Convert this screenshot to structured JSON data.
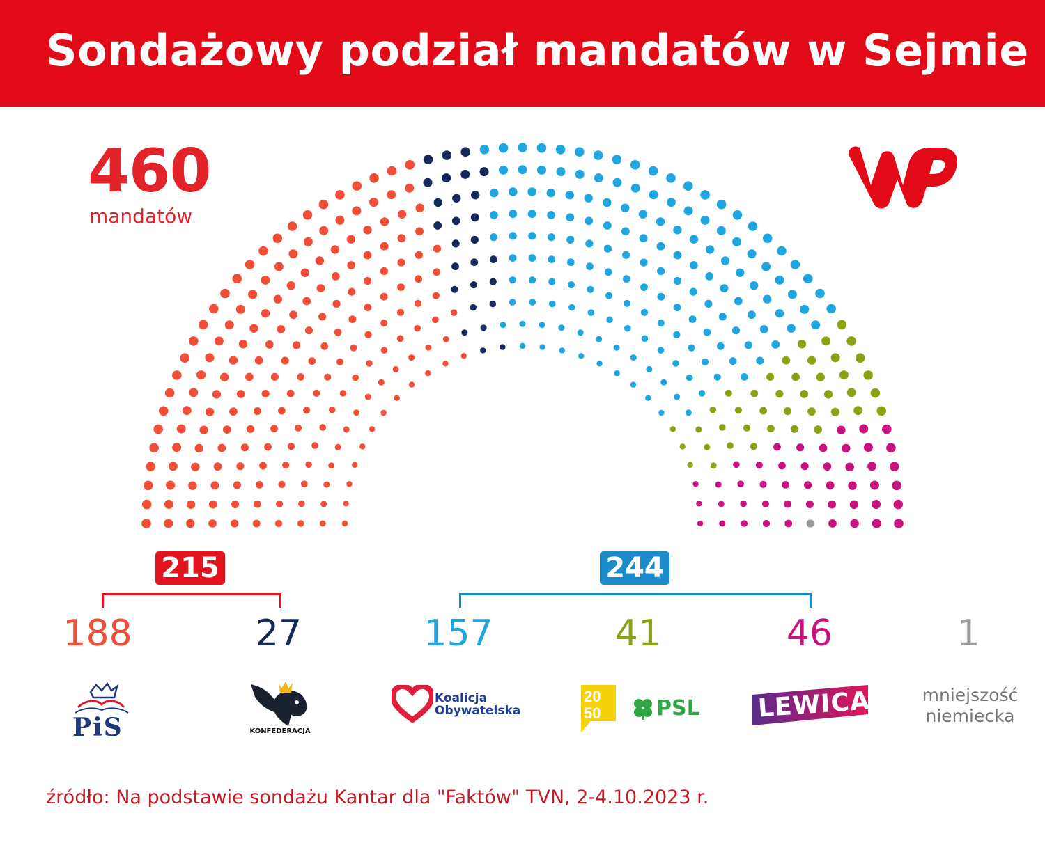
{
  "header": {
    "title": "Sondażowy podział mandatów w Sejmie"
  },
  "total": {
    "value": "460",
    "label": "mandatów"
  },
  "coalitions": {
    "left_total": "215",
    "right_total": "244"
  },
  "source": "źródło: Na podstawie sondażu Kantar dla \"Faktów\" TVN, 2-4.10.2023 r.",
  "logos": {
    "pis": "PiS",
    "konfederacja": "KONFEDERACJA",
    "ko_line1": "Koalicja",
    "ko_line2": "Obywatelska",
    "td_2050": "2050",
    "psl": "PSL",
    "lewica": "LEWICA",
    "minority_line1": "mniejszość",
    "minority_line2": "niemiecka"
  },
  "chart_data": {
    "type": "hemicycle",
    "total_seats": 460,
    "series": [
      {
        "name": "PiS",
        "value": 188,
        "color": "#f04e37"
      },
      {
        "name": "Konfederacja",
        "value": 27,
        "color": "#132a5a"
      },
      {
        "name": "Koalicja Obywatelska",
        "value": 157,
        "color": "#1fa6e1"
      },
      {
        "name": "Trzecia Droga (PL 2050 + PSL)",
        "value": 41,
        "color": "#8aa313"
      },
      {
        "name": "Lewica",
        "value": 46,
        "color": "#c8127e"
      },
      {
        "name": "mniejszość niemiecka",
        "value": 1,
        "color": "#9a9a9a"
      }
    ],
    "seat_labels": [
      "188",
      "27",
      "157",
      "41",
      "46",
      "1"
    ],
    "coalition_totals": [
      {
        "value": 215,
        "members": [
          "PiS",
          "Konfederacja"
        ],
        "color": "#e2141e"
      },
      {
        "value": 244,
        "members": [
          "Koalicja Obywatelska",
          "Trzecia Droga (PL 2050 + PSL)",
          "Lewica"
        ],
        "color": "#1b8cc9"
      }
    ]
  }
}
